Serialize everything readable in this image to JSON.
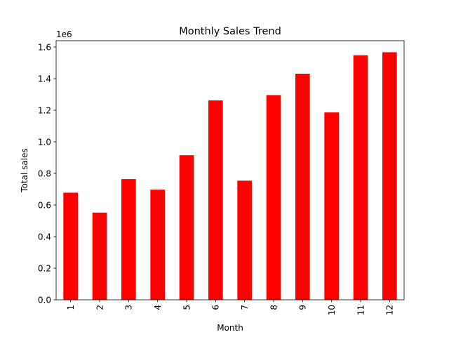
{
  "chart_data": {
    "type": "bar",
    "title": "Monthly Sales Trend",
    "xlabel": "Month",
    "ylabel": "Total sales",
    "y_scale_label": "1e6",
    "categories": [
      "1",
      "2",
      "3",
      "4",
      "5",
      "6",
      "7",
      "8",
      "9",
      "10",
      "11",
      "12"
    ],
    "values": [
      678000,
      552000,
      764000,
      697000,
      915000,
      1262000,
      754000,
      1296000,
      1431000,
      1186000,
      1548000,
      1567000
    ],
    "ylim": [
      0,
      1640000
    ],
    "y_ticks": [
      0,
      200000,
      400000,
      600000,
      800000,
      1000000,
      1200000,
      1400000,
      1600000
    ],
    "y_tick_labels": [
      "0.0",
      "0.2",
      "0.4",
      "0.6",
      "0.8",
      "1.0",
      "1.2",
      "1.4",
      "1.6"
    ],
    "bar_color": "#ff0000",
    "grid": false,
    "legend": "none",
    "x_tick_rotation": "vertical"
  }
}
